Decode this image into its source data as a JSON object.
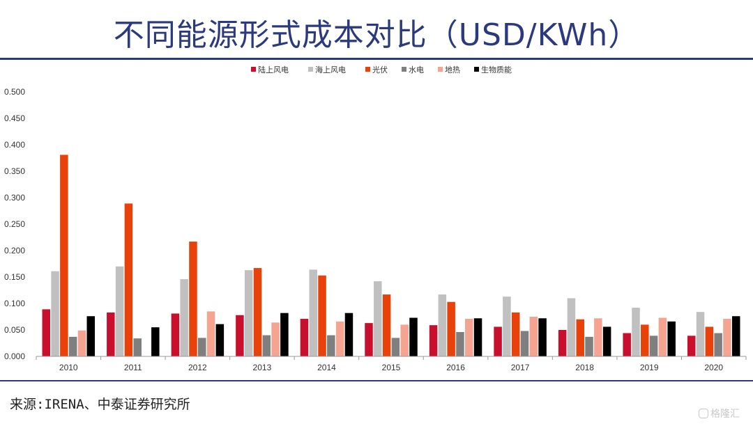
{
  "page": {
    "title": "不同能源形式成本对比（USD/KWh）",
    "source": "来源:IRENA、中泰证券研究所",
    "watermark": "格隆汇"
  },
  "colors": {
    "title": "#2b3a7e",
    "rule": "#2b3a7e"
  },
  "chart_data": {
    "type": "bar",
    "categories": [
      "2010",
      "2011",
      "2012",
      "2013",
      "2014",
      "2015",
      "2016",
      "2017",
      "2018",
      "2019",
      "2020"
    ],
    "ylim": [
      0,
      0.5
    ],
    "yticks": [
      "0.000",
      "0.050",
      "0.100",
      "0.150",
      "0.200",
      "0.250",
      "0.300",
      "0.350",
      "0.400",
      "0.450",
      "0.500"
    ],
    "grid": false,
    "legend_position": "top-center",
    "series": [
      {
        "name": "陆上风电",
        "color": "#c8102e",
        "values": [
          0.089,
          0.083,
          0.081,
          0.078,
          0.071,
          0.063,
          0.059,
          0.056,
          0.05,
          0.044,
          0.039
        ]
      },
      {
        "name": "海上风电",
        "color": "#c0c0c0",
        "values": [
          0.161,
          0.17,
          0.146,
          0.163,
          0.164,
          0.142,
          0.117,
          0.113,
          0.11,
          0.092,
          0.084
        ]
      },
      {
        "name": "光伏",
        "color": "#e8410a",
        "values": [
          0.381,
          0.289,
          0.217,
          0.167,
          0.153,
          0.117,
          0.103,
          0.083,
          0.07,
          0.06,
          0.056
        ]
      },
      {
        "name": "水电",
        "color": "#7f7f7f",
        "values": [
          0.037,
          0.034,
          0.035,
          0.04,
          0.04,
          0.035,
          0.046,
          0.048,
          0.037,
          0.039,
          0.044
        ]
      },
      {
        "name": "地热",
        "color": "#f4a491",
        "values": [
          0.049,
          null,
          0.085,
          0.064,
          0.066,
          0.06,
          0.071,
          0.075,
          0.072,
          0.073,
          0.071
        ]
      },
      {
        "name": "生物质能",
        "color": "#000000",
        "values": [
          0.076,
          0.055,
          0.061,
          0.082,
          0.082,
          0.073,
          0.072,
          0.072,
          0.056,
          0.066,
          0.076
        ]
      }
    ]
  }
}
